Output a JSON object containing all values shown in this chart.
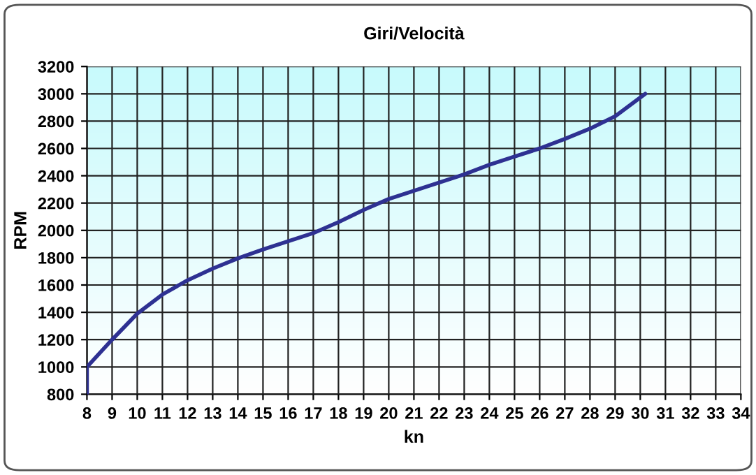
{
  "chart_data": {
    "type": "line",
    "title": "Giri/Velocità",
    "xlabel": "kn",
    "ylabel": "RPM",
    "x": [
      8,
      8,
      9,
      10,
      11,
      12,
      13,
      14,
      15,
      16,
      17,
      18,
      19,
      20,
      21,
      22,
      23,
      24,
      25,
      26,
      27,
      28,
      29,
      30.2
    ],
    "series": [
      {
        "color": "#2e3192",
        "values": [
          800,
          1000,
          1200,
          1390,
          1530,
          1635,
          1720,
          1795,
          1860,
          1920,
          1980,
          2060,
          2150,
          2230,
          2290,
          2350,
          2410,
          2480,
          2540,
          2600,
          2670,
          2745,
          2835,
          3000
        ]
      }
    ],
    "xlim": [
      8,
      34
    ],
    "xticks": [
      8,
      9,
      10,
      11,
      12,
      13,
      14,
      15,
      16,
      17,
      18,
      19,
      20,
      21,
      22,
      23,
      24,
      25,
      26,
      27,
      28,
      29,
      30,
      31,
      32,
      33,
      34
    ],
    "ylim": [
      800,
      3200
    ],
    "yticks": [
      800,
      1000,
      1200,
      1400,
      1600,
      1800,
      2000,
      2200,
      2400,
      2600,
      2800,
      3000,
      3200
    ],
    "grid": true,
    "legend": false,
    "marker": "none",
    "line_style": "solid"
  }
}
